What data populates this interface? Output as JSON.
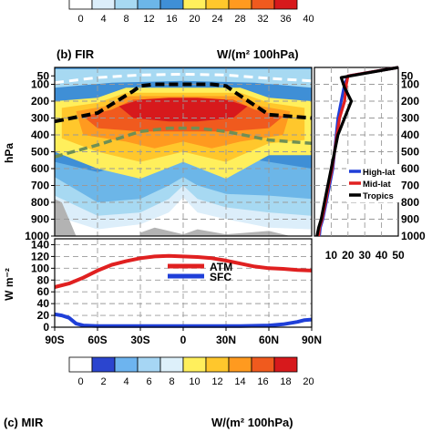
{
  "top_colorbar": {
    "ticks": [
      "0",
      "4",
      "8",
      "12",
      "16",
      "20",
      "24",
      "28",
      "32",
      "36",
      "40"
    ],
    "colors": [
      "#ffffff",
      "#dceefa",
      "#a7d9f2",
      "#6cb6e8",
      "#3f8fd6",
      "#ffef5c",
      "#ffc72c",
      "#ff9a1f",
      "#f05a1e",
      "#d7191c"
    ]
  },
  "panel_b": {
    "title": "(b) FIR",
    "units": "W/(m² 100hPa)"
  },
  "panel_c": {
    "title": "(c) MIR",
    "units": "W/(m² 100hPa)"
  },
  "bottom_colorbar": {
    "ticks": [
      "0",
      "2",
      "4",
      "6",
      "8",
      "10",
      "12",
      "14",
      "16",
      "18",
      "20"
    ],
    "colors": [
      "#ffffff",
      "#2b45cf",
      "#6db4ef",
      "#a6d6f4",
      "#ddf0fa",
      "#ffef5c",
      "#ffc72c",
      "#ff9a1f",
      "#f05a1e",
      "#d7191c"
    ]
  },
  "chart_data": [
    {
      "type": "heatmap",
      "panel": "(b) FIR",
      "ylabel": "hPa",
      "y_ticks": [
        "50",
        "100",
        "200",
        "300",
        "400",
        "500",
        "600",
        "700",
        "800",
        "900",
        "1000"
      ],
      "ylim": [
        1000,
        0
      ],
      "xlim": [
        -90,
        90
      ],
      "grid": true,
      "overlay_lines": [
        {
          "style": "black dashed",
          "lat": [
            -90,
            -60,
            -35,
            -30,
            -20,
            -10,
            0,
            10,
            20,
            30,
            35,
            60,
            90
          ],
          "p": [
            320,
            270,
            140,
            110,
            100,
            100,
            100,
            100,
            100,
            110,
            140,
            280,
            300
          ]
        },
        {
          "style": "white dashed",
          "lat": [
            -90,
            -60,
            -30,
            0,
            30,
            60,
            90
          ],
          "p": [
            90,
            60,
            45,
            40,
            45,
            65,
            80
          ]
        },
        {
          "style": "green dashed",
          "lat": [
            -90,
            -60,
            -30,
            -10,
            0,
            10,
            30,
            60,
            90
          ],
          "p": [
            530,
            460,
            380,
            360,
            360,
            360,
            380,
            430,
            450
          ]
        }
      ]
    },
    {
      "type": "line",
      "panel": "(b) FIR profile",
      "x_ticks": [
        "10",
        "20",
        "30",
        "40",
        "50"
      ],
      "xlim": [
        0,
        50
      ],
      "ylim": [
        1000,
        0
      ],
      "legend_placement": "lower-right",
      "series": [
        {
          "name": "High-lat",
          "color": "#1f3fd8",
          "x": [
            3,
            3.5,
            5,
            7,
            9,
            11,
            12,
            13,
            14,
            16,
            18,
            20,
            50
          ],
          "p": [
            1000,
            950,
            900,
            800,
            700,
            600,
            500,
            400,
            300,
            200,
            100,
            50,
            0
          ]
        },
        {
          "name": "Mid-lat",
          "color": "#e02020",
          "x": [
            2.5,
            3,
            4.5,
            6.5,
            8.5,
            10.5,
            12,
            13.5,
            15,
            18,
            19,
            20,
            50
          ],
          "p": [
            1000,
            950,
            900,
            800,
            700,
            600,
            500,
            400,
            300,
            200,
            100,
            50,
            0
          ]
        },
        {
          "name": "Tropics",
          "color": "#000000",
          "x": [
            1.5,
            2.5,
            4,
            6,
            8,
            10,
            12,
            14,
            18,
            22,
            18,
            16,
            50
          ],
          "p": [
            1000,
            950,
            900,
            800,
            700,
            600,
            500,
            400,
            300,
            200,
            120,
            60,
            0
          ]
        }
      ]
    },
    {
      "type": "line",
      "panel": "flux",
      "ylabel": "W m⁻²",
      "x_ticks": [
        "90S",
        "60S",
        "30S",
        "0",
        "30N",
        "60N",
        "90N"
      ],
      "y_ticks": [
        "0",
        "20",
        "40",
        "60",
        "80",
        "100",
        "120",
        "140"
      ],
      "xlim": [
        -90,
        90
      ],
      "ylim": [
        0,
        150
      ],
      "grid": true,
      "legend_placement": "top-center",
      "series": [
        {
          "name": "ATM",
          "color": "#e02020",
          "x": [
            -90,
            -80,
            -70,
            -60,
            -50,
            -40,
            -30,
            -20,
            -10,
            0,
            10,
            20,
            30,
            40,
            50,
            60,
            70,
            80,
            90
          ],
          "values": [
            68,
            74,
            84,
            96,
            106,
            112,
            117,
            120,
            121,
            120,
            119,
            117,
            113,
            108,
            103,
            100,
            99,
            97,
            96
          ]
        },
        {
          "name": "SFC",
          "color": "#1f3fd8",
          "x": [
            -90,
            -85,
            -80,
            -75,
            -70,
            -60,
            -40,
            -20,
            0,
            20,
            40,
            60,
            70,
            80,
            85,
            90
          ],
          "values": [
            22,
            20,
            16,
            6,
            3,
            2,
            2,
            2,
            2,
            2,
            2,
            3,
            5,
            9,
            12,
            13
          ]
        }
      ]
    }
  ]
}
